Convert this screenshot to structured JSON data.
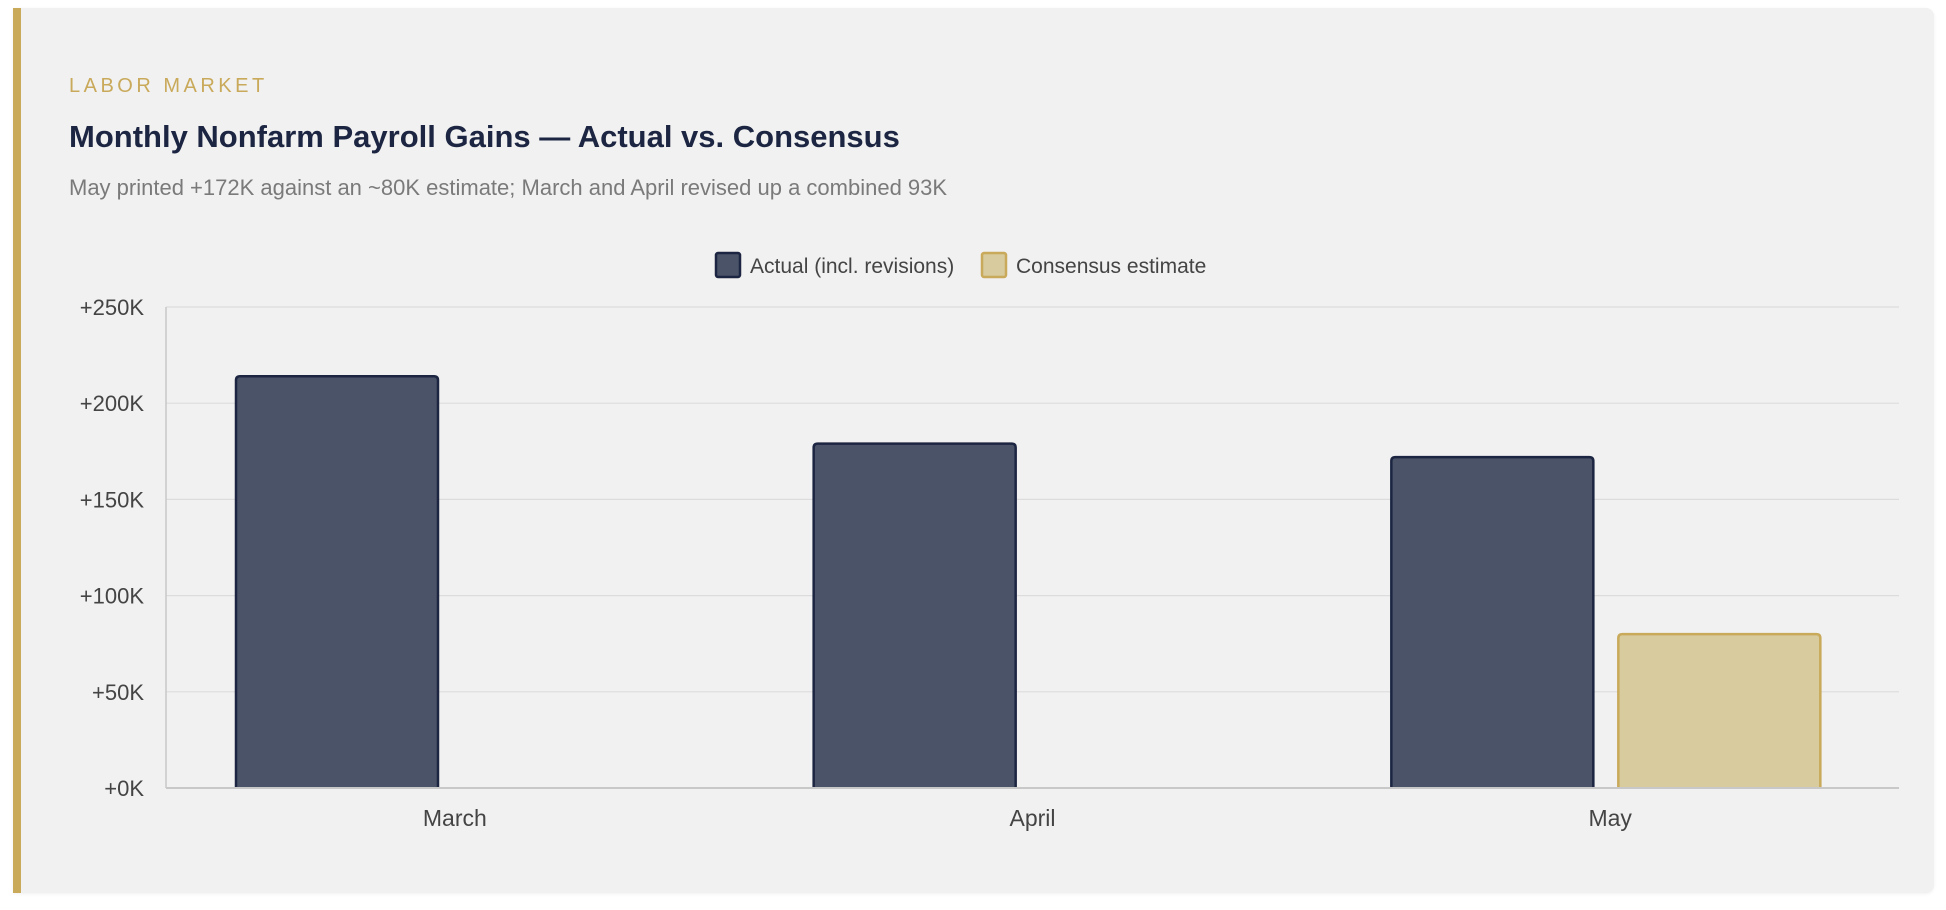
{
  "header": {
    "eyebrow": "LABOR MARKET",
    "title": "Monthly Nonfarm Payroll Gains — Actual vs. Consensus",
    "subtitle": "May printed +172K against an ~80K estimate; March and April revised up a combined 93K"
  },
  "colors": {
    "accent": "#c9a95a",
    "title": "#1c2541",
    "actual_fill": "#4a5367",
    "actual_stroke": "#1c2541",
    "estimate_fill": "#d8cb9d",
    "estimate_stroke": "#c9a95a",
    "grid": "#dcdcdc",
    "axis_text": "#444444"
  },
  "chart_data": {
    "type": "bar",
    "categories": [
      "March",
      "April",
      "May"
    ],
    "series": [
      {
        "name": "Actual (incl. revisions)",
        "values": [
          214,
          179,
          172
        ]
      },
      {
        "name": "Consensus estimate",
        "values": [
          null,
          null,
          80
        ]
      }
    ],
    "ylim": [
      0,
      250
    ],
    "yticks": [
      0,
      50,
      100,
      150,
      200,
      250
    ],
    "ytick_labels": [
      "+0K",
      "+50K",
      "+100K",
      "+150K",
      "+200K",
      "+250K"
    ],
    "legend": "top-center",
    "grid": true,
    "xlabel": "",
    "ylabel": ""
  }
}
